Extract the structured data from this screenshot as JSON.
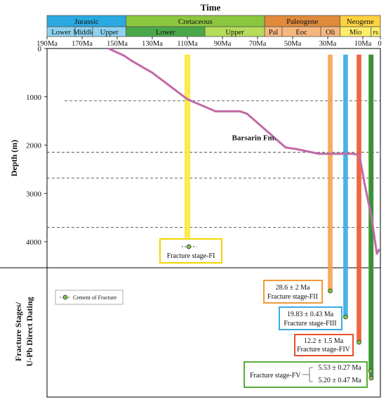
{
  "chart_data": {
    "type": "line",
    "title": "Time",
    "xlabel": "",
    "ylabel": "Depth (m)",
    "lower_panel_label": [
      "Fracture Stages/",
      "U-Pb Direct Dating"
    ],
    "x_reversed": true,
    "xlim": [
      190,
      0
    ],
    "ylim": [
      0,
      4500
    ],
    "x_ticks": [
      {
        "value": 190,
        "label": "190Ma"
      },
      {
        "value": 170,
        "label": "170Ma"
      },
      {
        "value": 150,
        "label": "150Ma"
      },
      {
        "value": 130,
        "label": "130Ma"
      },
      {
        "value": 110,
        "label": "110Ma"
      },
      {
        "value": 90,
        "label": "90Ma"
      },
      {
        "value": 70,
        "label": "70Ma"
      },
      {
        "value": 50,
        "label": "50Ma"
      },
      {
        "value": 30,
        "label": "30Ma"
      },
      {
        "value": 10,
        "label": "10Ma"
      },
      {
        "value": 0,
        "label": "0"
      }
    ],
    "y_ticks": [
      {
        "value": 0,
        "label": "0"
      },
      {
        "value": 1000,
        "label": "1000"
      },
      {
        "value": 2000,
        "label": "2000"
      },
      {
        "value": 3000,
        "label": "3000"
      },
      {
        "value": 4000,
        "label": "4000"
      }
    ],
    "periods": [
      {
        "name": "Jurassic",
        "start": 201,
        "end": 145,
        "color": "#29a9e0"
      },
      {
        "name": "Cretaceous",
        "start": 145,
        "end": 66,
        "color": "#8cc63f"
      },
      {
        "name": "Paleogene",
        "start": 66,
        "end": 23,
        "color": "#e08a3c"
      },
      {
        "name": "Neogene",
        "start": 23,
        "end": 0,
        "color": "#ffd23f"
      }
    ],
    "epochs": [
      {
        "name": "Lower",
        "start": 201,
        "end": 174,
        "color": "#8ed3f0"
      },
      {
        "name": "Middle",
        "start": 174,
        "end": 164,
        "color": "#8ed3f0"
      },
      {
        "name": "Upper",
        "start": 164,
        "end": 145,
        "color": "#8ed3f0"
      },
      {
        "name": "Lower",
        "start": 145,
        "end": 100,
        "color": "#4aa84a"
      },
      {
        "name": "Upper",
        "start": 100,
        "end": 66,
        "color": "#b5dc5a"
      },
      {
        "name": "Pal",
        "start": 66,
        "end": 56,
        "color": "#f6b77f"
      },
      {
        "name": "Eoc",
        "start": 56,
        "end": 34,
        "color": "#f6b77f"
      },
      {
        "name": "Oli",
        "start": 34,
        "end": 23,
        "color": "#f6b77f"
      },
      {
        "name": "Mio",
        "start": 23,
        "end": 5.3,
        "color": "#ffee6b"
      },
      {
        "name": "Pli",
        "start": 5.3,
        "end": 0,
        "color": "#ffee6b"
      }
    ],
    "burial_curve": {
      "color": "#c06aa6",
      "x": [
        155,
        146,
        142,
        130,
        110,
        94,
        80,
        76,
        54,
        48,
        35,
        31,
        22,
        16,
        12,
        9,
        5,
        2,
        0.5
      ],
      "y": [
        0,
        150,
        250,
        500,
        1050,
        1300,
        1300,
        1350,
        2050,
        2080,
        2180,
        2180,
        2180,
        2180,
        2200,
        2800,
        3500,
        4250,
        4150
      ]
    },
    "formation_label": {
      "text": "Barsarin Fm.",
      "x": 72,
      "y": 1900
    },
    "horizons": [
      {
        "y": 1080,
        "x_from": 180
      },
      {
        "y": 2150,
        "x_from": 190
      },
      {
        "y": 2680,
        "x_from": 190
      },
      {
        "y": 3700,
        "x_from": 190
      }
    ],
    "legend": {
      "label": "Cement of Fracture",
      "location": "upper-left of lower panel"
    },
    "fracture_stages": [
      {
        "name": "Fracture stage-FI",
        "age": 110,
        "age_label": "",
        "color": "#ffeb3b",
        "box_color": "#f2d600"
      },
      {
        "name": "Fracture stage-FII",
        "age": 28.6,
        "age_label": "28.6 ± 2 Ma",
        "color": "#f5a555",
        "box_color": "#f39a3a"
      },
      {
        "name": "Fracture stage-FIII",
        "age": 19.83,
        "age_label": "19.83 ± 0.43 Ma",
        "color": "#3aace6",
        "box_color": "#3aace6"
      },
      {
        "name": "Fracture stage-FIV",
        "age": 12.2,
        "age_label": "12.2 ± 1.5 Ma",
        "color": "#ef5a2e",
        "box_color": "#e8502a"
      },
      {
        "name": "Fracture stage-FV",
        "age": 5.53,
        "age_label": "5.53 ± 0.27 Ma",
        "color": "#9acd5a",
        "box_color": "#5aab3c"
      },
      {
        "name": "Fracture stage-FV",
        "age": 5.2,
        "age_label": "5.20 ± 0.47 Ma",
        "color": "#2e8b3a",
        "box_color": "#5aab3c"
      }
    ]
  }
}
